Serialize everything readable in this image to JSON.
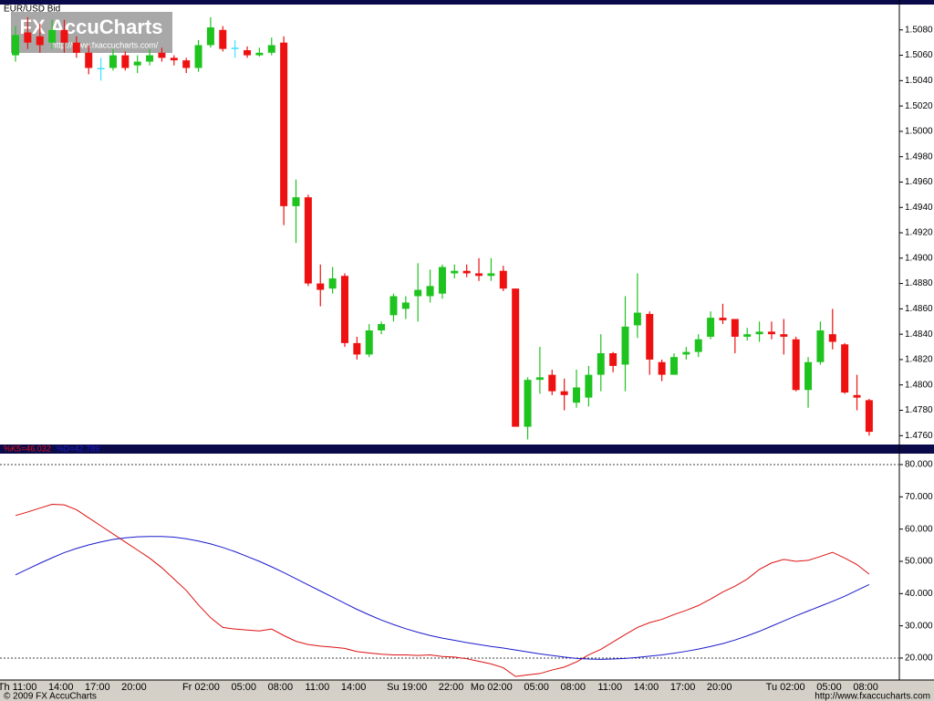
{
  "chart_data": [
    {
      "type": "candlestick",
      "title": "EUR/USD Bid",
      "open": [
        1.506,
        1.5078,
        1.5075,
        1.507,
        1.508,
        1.507,
        1.5062,
        1.505,
        1.505,
        1.506,
        1.5052,
        1.5055,
        1.5062,
        1.5058,
        1.5056,
        1.505,
        1.5068,
        1.508,
        1.5066,
        1.5064,
        1.506,
        1.5062,
        1.507,
        1.4941,
        1.4948,
        1.488,
        1.4876,
        1.4886,
        1.4833,
        1.4824,
        1.4843,
        1.4855,
        1.486,
        1.487,
        1.487,
        1.4872,
        1.4888,
        1.489,
        1.4888,
        1.4886,
        1.489,
        1.4876,
        1.4767,
        1.4804,
        1.4808,
        1.4795,
        1.4786,
        1.479,
        1.4808,
        1.4825,
        1.4816,
        1.4847,
        1.4856,
        1.4818,
        1.4808,
        1.4824,
        1.4826,
        1.4838,
        1.4853,
        1.4852,
        1.4838,
        1.484,
        1.4842,
        1.484,
        1.4836,
        1.4796,
        1.4818,
        1.484,
        1.4832,
        1.4792,
        1.4788
      ],
      "high": [
        1.5083,
        1.509,
        1.5085,
        1.5088,
        1.5088,
        1.5075,
        1.5068,
        1.5058,
        1.5065,
        1.5063,
        1.506,
        1.5065,
        1.5066,
        1.506,
        1.5058,
        1.5072,
        1.509,
        1.5083,
        1.5072,
        1.5067,
        1.5066,
        1.5074,
        1.5075,
        1.4962,
        1.495,
        1.4895,
        1.4893,
        1.4888,
        1.4838,
        1.4848,
        1.485,
        1.4872,
        1.487,
        1.4896,
        1.4891,
        1.4895,
        1.4895,
        1.4895,
        1.49,
        1.49,
        1.4894,
        1.4876,
        1.4806,
        1.483,
        1.4812,
        1.4805,
        1.4812,
        1.4815,
        1.484,
        1.4826,
        1.487,
        1.4888,
        1.4858,
        1.482,
        1.4825,
        1.483,
        1.484,
        1.4858,
        1.4864,
        1.4852,
        1.4845,
        1.485,
        1.485,
        1.4852,
        1.4838,
        1.4822,
        1.485,
        1.486,
        1.4833,
        1.4808,
        1.4789
      ],
      "low": [
        1.5055,
        1.5065,
        1.5062,
        1.5065,
        1.5062,
        1.5058,
        1.5045,
        1.504,
        1.5048,
        1.5048,
        1.5046,
        1.5052,
        1.5055,
        1.5052,
        1.5046,
        1.5047,
        1.5066,
        1.5063,
        1.5058,
        1.5058,
        1.5059,
        1.506,
        1.4926,
        1.4912,
        1.4878,
        1.4862,
        1.4872,
        1.483,
        1.482,
        1.4822,
        1.484,
        1.485,
        1.4852,
        1.485,
        1.4865,
        1.4868,
        1.4884,
        1.4885,
        1.4882,
        1.4882,
        1.4874,
        1.4767,
        1.4757,
        1.4793,
        1.4792,
        1.478,
        1.4782,
        1.4783,
        1.4795,
        1.481,
        1.4795,
        1.4837,
        1.4808,
        1.4803,
        1.4808,
        1.482,
        1.4822,
        1.4836,
        1.4848,
        1.4825,
        1.4835,
        1.4834,
        1.4836,
        1.4824,
        1.4795,
        1.4782,
        1.4816,
        1.4828,
        1.4793,
        1.478,
        1.476
      ],
      "close": [
        1.5076,
        1.507,
        1.5068,
        1.508,
        1.507,
        1.5062,
        1.505,
        1.505,
        1.506,
        1.505,
        1.5055,
        1.506,
        1.5058,
        1.5056,
        1.505,
        1.5068,
        1.5082,
        1.5065,
        1.5066,
        1.506,
        1.5062,
        1.5068,
        1.4941,
        1.4948,
        1.488,
        1.4875,
        1.4884,
        1.4833,
        1.4824,
        1.4843,
        1.4848,
        1.487,
        1.4865,
        1.4875,
        1.4878,
        1.4893,
        1.489,
        1.4888,
        1.4886,
        1.4888,
        1.4876,
        1.4767,
        1.4804,
        1.4806,
        1.4795,
        1.4792,
        1.4798,
        1.4808,
        1.4825,
        1.4815,
        1.4846,
        1.4857,
        1.482,
        1.4808,
        1.4822,
        1.4826,
        1.4836,
        1.4853,
        1.4851,
        1.4838,
        1.484,
        1.4842,
        1.484,
        1.4838,
        1.4796,
        1.4818,
        1.4843,
        1.4834,
        1.4794,
        1.479,
        1.4763
      ],
      "colors": {
        "up": "#1fc31f",
        "down": "#ee1111",
        "unchanged": "#3fe0ff"
      },
      "ylim": [
        1.4753,
        1.51
      ],
      "yticks": [
        {
          "value": 1.476,
          "label": "1.4760"
        },
        {
          "value": 1.478,
          "label": "1.4780"
        },
        {
          "value": 1.48,
          "label": "1.4800"
        },
        {
          "value": 1.482,
          "label": "1.4820"
        },
        {
          "value": 1.484,
          "label": "1.4840"
        },
        {
          "value": 1.486,
          "label": "1.4860"
        },
        {
          "value": 1.488,
          "label": "1.4880"
        },
        {
          "value": 1.49,
          "label": "1.4900"
        },
        {
          "value": 1.492,
          "label": "1.4920"
        },
        {
          "value": 1.494,
          "label": "1.4940"
        },
        {
          "value": 1.496,
          "label": "1.4960"
        },
        {
          "value": 1.498,
          "label": "1.4980"
        },
        {
          "value": 1.5,
          "label": "1.5000"
        },
        {
          "value": 1.502,
          "label": "1.5020"
        },
        {
          "value": 1.504,
          "label": "1.5040"
        },
        {
          "value": 1.506,
          "label": "1.5060"
        },
        {
          "value": 1.508,
          "label": "1.5080"
        }
      ]
    },
    {
      "type": "line",
      "categories": [
        null,
        "Th 11:00",
        null,
        null,
        "14:00",
        null,
        null,
        "17:00",
        null,
        null,
        "20:00",
        null,
        null,
        null,
        null,
        null,
        "Fr 02:00",
        null,
        null,
        "05:00",
        null,
        null,
        "08:00",
        null,
        null,
        "11:00",
        null,
        null,
        "14:00",
        null,
        null,
        null,
        null,
        "Su 19:00",
        null,
        null,
        "22:00",
        null,
        null,
        null,
        "Mo 02:00",
        null,
        null,
        "05:00",
        null,
        null,
        "08:00",
        null,
        null,
        "11:00",
        null,
        null,
        "14:00",
        null,
        null,
        "17:00",
        null,
        null,
        "20:00",
        null,
        null,
        null,
        null,
        null,
        "Tu 02:00",
        null,
        null,
        "05:00",
        null,
        null,
        "08:00"
      ],
      "series": [
        {
          "name": "%K5=46.032",
          "color": "#dd1111",
          "values": [
            64.2,
            65.3,
            66.5,
            67.7,
            67.5,
            66,
            63.5,
            61,
            58.5,
            56,
            53.5,
            51,
            48,
            44.5,
            41,
            36.5,
            32.5,
            29.5,
            29,
            28.7,
            28.4,
            29,
            27,
            25.2,
            24.2,
            23.7,
            23.4,
            23,
            22,
            21.6,
            21.2,
            21,
            21,
            20.8,
            21,
            20.5,
            20.3,
            19.8,
            19,
            18.2,
            17,
            14.3,
            14.8,
            15.2,
            16.3,
            17.2,
            18.8,
            21,
            22.7,
            25,
            27.3,
            29.5,
            31,
            32,
            33.5,
            34.8,
            36.3,
            38.3,
            40.5,
            42.3,
            44.5,
            47.5,
            49.5,
            50.6,
            50,
            50.3,
            51.5,
            52.8,
            51,
            49,
            46.032
          ]
        },
        {
          "name": "%D=42.789",
          "color": "#1a1acc",
          "values": [
            45.8,
            47.6,
            49.4,
            51.1,
            52.7,
            54,
            55.1,
            56,
            56.8,
            57.3,
            57.6,
            57.7,
            57.7,
            57.5,
            57,
            56.3,
            55.4,
            54.3,
            53,
            51.5,
            50,
            48.3,
            46.5,
            44.6,
            42.7,
            40.8,
            38.9,
            37,
            35.1,
            33.4,
            31.8,
            30.4,
            29.1,
            28,
            27,
            26.2,
            25.5,
            24.8,
            24.2,
            23.6,
            23.1,
            22.5,
            21.9,
            21.3,
            20.8,
            20.3,
            19.9,
            19.7,
            19.6,
            19.7,
            19.9,
            20.2,
            20.6,
            21,
            21.5,
            22.1,
            22.8,
            23.6,
            24.5,
            25.6,
            26.9,
            28.3,
            29.9,
            31.5,
            33.1,
            34.6,
            36.1,
            37.6,
            39.2,
            41,
            42.789
          ]
        }
      ],
      "ylim": [
        13.2,
        83.4
      ],
      "yticks": [
        {
          "value": 20,
          "label": "20.000"
        },
        {
          "value": 30,
          "label": "30.000"
        },
        {
          "value": 40,
          "label": "40.000"
        },
        {
          "value": 50,
          "label": "50.000"
        },
        {
          "value": 60,
          "label": "60.000"
        },
        {
          "value": 70,
          "label": "70.000"
        },
        {
          "value": 80,
          "label": "80.000"
        }
      ],
      "reference_lines": [
        80,
        20
      ]
    }
  ],
  "watermark": {
    "brand": "FX AccuCharts",
    "url": "http://www.fxaccucharts.com/"
  },
  "footer": {
    "copyright": "© 2009 FX AccuCharts",
    "url": "http://www.fxaccucharts.com"
  }
}
